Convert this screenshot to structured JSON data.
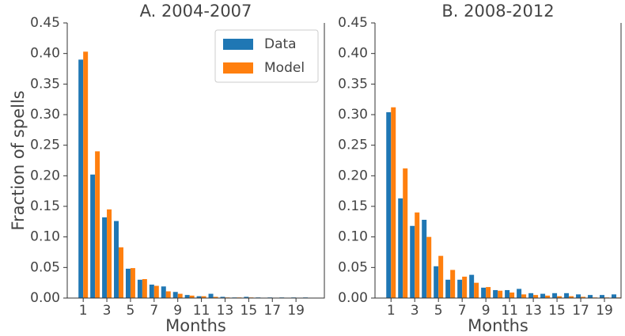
{
  "chart_data": [
    {
      "type": "bar",
      "title": "A. 2004-2007",
      "x_label": "Months",
      "y_label": "Fraction of spells",
      "x": [
        1,
        2,
        3,
        4,
        5,
        6,
        7,
        8,
        9,
        10,
        11,
        12,
        13,
        14,
        15,
        16,
        17,
        18,
        19,
        20
      ],
      "series": [
        {
          "name": "Data",
          "color": "#1f77b4",
          "values": [
            0.39,
            0.202,
            0.132,
            0.126,
            0.048,
            0.03,
            0.022,
            0.019,
            0.01,
            0.005,
            0.003,
            0.007,
            0.002,
            0.001,
            0.002,
            0.001,
            0.001,
            0.001,
            0.001,
            0.001
          ]
        },
        {
          "name": "Model",
          "color": "#ff7f0e",
          "values": [
            0.403,
            0.24,
            0.145,
            0.083,
            0.049,
            0.031,
            0.02,
            0.011,
            0.007,
            0.004,
            0.003,
            0.002,
            0.001,
            0.001,
            0.001,
            0,
            0,
            0,
            0,
            0
          ]
        }
      ],
      "xlim": [
        -0.35,
        21.4
      ],
      "xticks": [
        1,
        3,
        5,
        7,
        9,
        11,
        13,
        15,
        17,
        19
      ],
      "ylim": [
        0,
        0.45
      ],
      "yticks": [
        {
          "value": 0,
          "label": "0.00"
        },
        {
          "value": 0.05,
          "label": "0.05"
        },
        {
          "value": 0.1,
          "label": "0.10"
        },
        {
          "value": 0.15,
          "label": "0.15"
        },
        {
          "value": 0.2,
          "label": "0.20"
        },
        {
          "value": 0.25,
          "label": "0.25"
        },
        {
          "value": 0.3,
          "label": "0.30"
        },
        {
          "value": 0.35,
          "label": "0.35"
        },
        {
          "value": 0.4,
          "label": "0.40"
        },
        {
          "value": 0.45,
          "label": "0.45"
        }
      ],
      "legend": "upper right"
    },
    {
      "type": "bar",
      "title": "B. 2008-2012",
      "x_label": "Months",
      "x": [
        1,
        2,
        3,
        4,
        5,
        6,
        7,
        8,
        9,
        10,
        11,
        12,
        13,
        14,
        15,
        16,
        17,
        18,
        19,
        20
      ],
      "series": [
        {
          "name": "Data",
          "color": "#1f77b4",
          "values": [
            0.304,
            0.163,
            0.118,
            0.128,
            0.052,
            0.03,
            0.03,
            0.038,
            0.017,
            0.013,
            0.013,
            0.015,
            0.008,
            0.007,
            0.008,
            0.008,
            0.006,
            0.005,
            0.005,
            0.006
          ]
        },
        {
          "name": "Model",
          "color": "#ff7f0e",
          "values": [
            0.312,
            0.212,
            0.14,
            0.1,
            0.069,
            0.046,
            0.035,
            0.025,
            0.018,
            0.012,
            0.009,
            0.006,
            0.005,
            0.004,
            0.003,
            0.003,
            0.002,
            0.001,
            0.001,
            0.001
          ]
        }
      ],
      "xlim": [
        -0.35,
        20.4
      ],
      "xticks": [
        1,
        3,
        5,
        7,
        9,
        11,
        13,
        15,
        17,
        19
      ],
      "ylim": [
        0,
        0.45
      ],
      "yticks": [
        {
          "value": 0,
          "label": "0.00"
        },
        {
          "value": 0.05,
          "label": "0.05"
        },
        {
          "value": 0.1,
          "label": "0.10"
        },
        {
          "value": 0.15,
          "label": "0.15"
        },
        {
          "value": 0.2,
          "label": "0.20"
        },
        {
          "value": 0.25,
          "label": "0.25"
        },
        {
          "value": 0.3,
          "label": "0.30"
        },
        {
          "value": 0.35,
          "label": "0.35"
        },
        {
          "value": 0.4,
          "label": "0.40"
        },
        {
          "value": 0.45,
          "label": "0.45"
        }
      ]
    }
  ]
}
